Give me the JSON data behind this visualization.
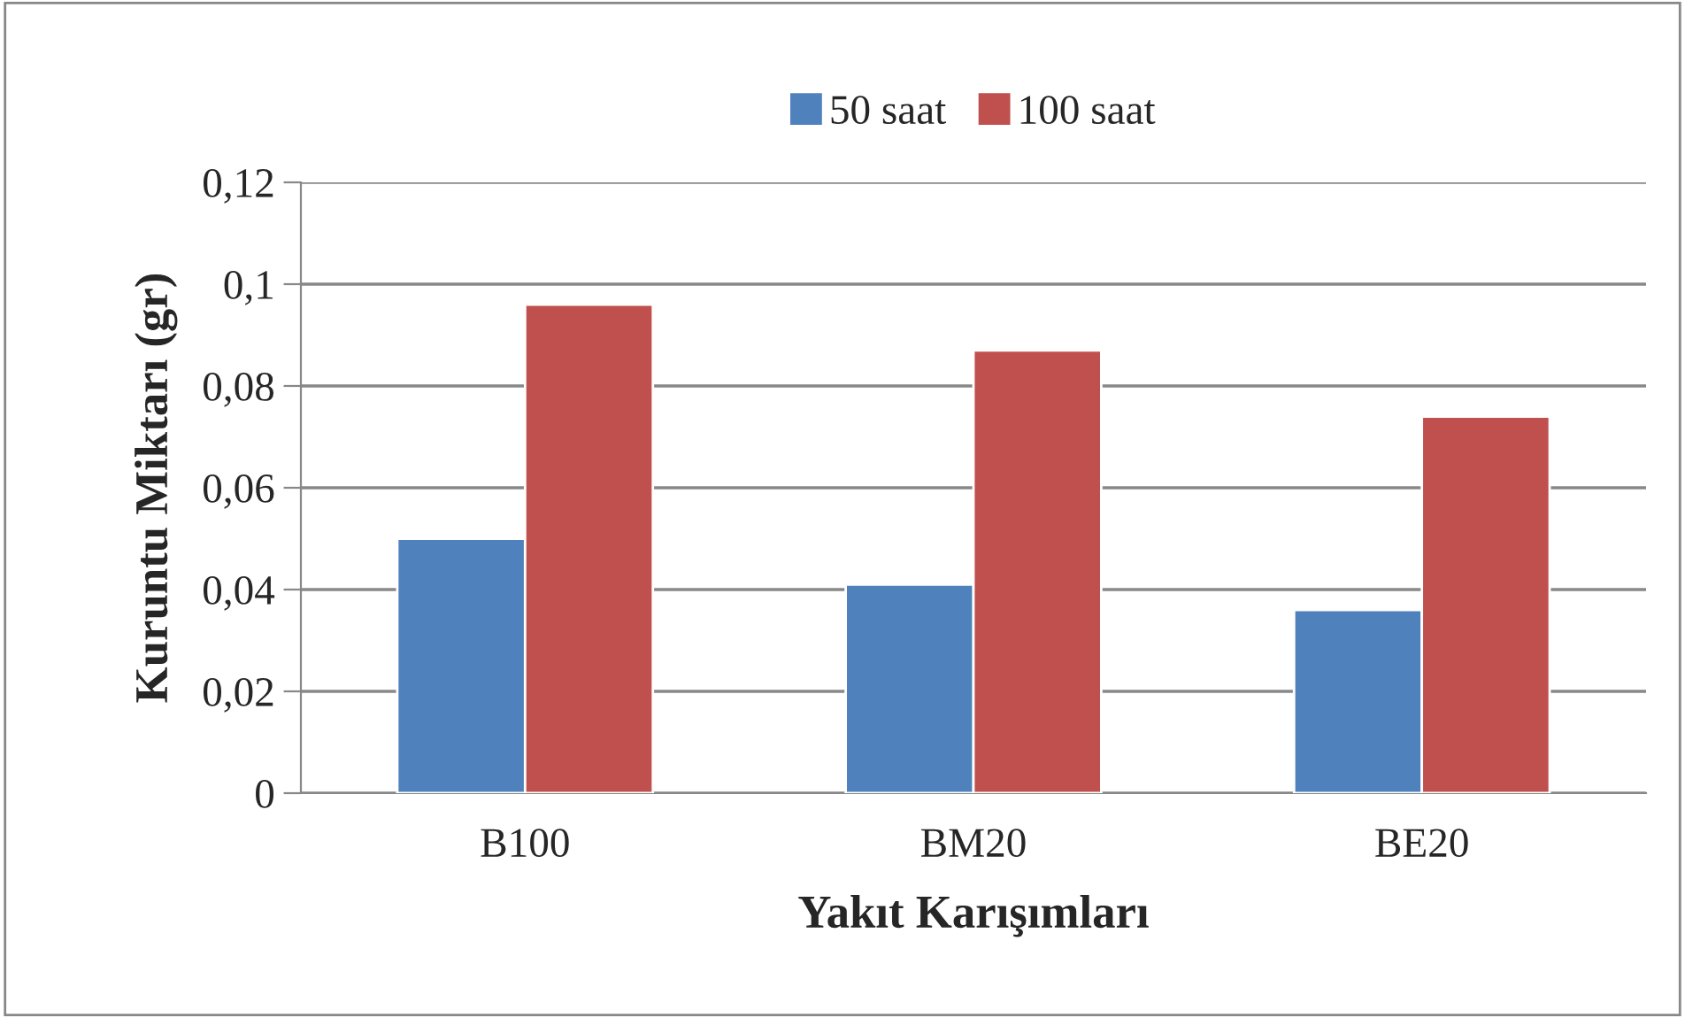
{
  "chart_data": {
    "type": "bar",
    "xlabel": "Yakıt Karışımları",
    "ylabel": "Kuruntu Miktarı (gr)",
    "categories": [
      "B100",
      "BM20",
      "BE20"
    ],
    "series": [
      {
        "name": "50 saat",
        "color": "#4f81bd",
        "values": [
          0.05,
          0.041,
          0.036
        ]
      },
      {
        "name": "100 saat",
        "color": "#c0504d",
        "values": [
          0.096,
          0.087,
          0.074
        ]
      }
    ],
    "ylim": [
      0,
      0.12
    ],
    "yticks": [
      {
        "value": 0,
        "label": "0"
      },
      {
        "value": 0.02,
        "label": "0,02"
      },
      {
        "value": 0.04,
        "label": "0,04"
      },
      {
        "value": 0.06,
        "label": "0,06"
      },
      {
        "value": 0.08,
        "label": "0,08"
      },
      {
        "value": 0.1,
        "label": "0,1"
      },
      {
        "value": 0.12,
        "label": "0,12"
      }
    ],
    "grid": "y",
    "legend": "top"
  }
}
